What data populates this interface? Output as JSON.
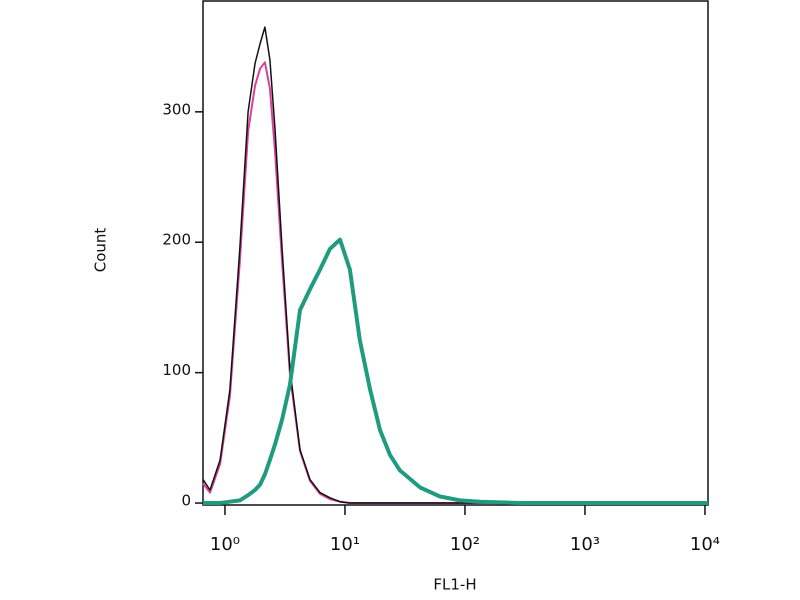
{
  "chart_data": {
    "type": "line",
    "xlabel": "FL1-H",
    "ylabel": "Count",
    "xscale": "log",
    "x": [
      0.656,
      0.75,
      0.91,
      1.1,
      1.33,
      1.56,
      1.78,
      1.96,
      2.15,
      2.37,
      2.61,
      2.99,
      3.48,
      4.22,
      5.11,
      6.19,
      7.5,
      9.09,
      11.0,
      13.3,
      16.2,
      19.6,
      23.7,
      28.7,
      42.2,
      61.9,
      90.9,
      133,
      287,
      1334,
      10600
    ],
    "series": [
      {
        "color": "#d8409c",
        "width": 2,
        "values": [
          15,
          8,
          30,
          82,
          185,
          285,
          320,
          333,
          338,
          318,
          270,
          185,
          98,
          40,
          17,
          7,
          3,
          1,
          0,
          0,
          0,
          0,
          0,
          0,
          0,
          0,
          0,
          0,
          0,
          0,
          0
        ]
      },
      {
        "color": "#111111",
        "width": 1.5,
        "values": [
          18,
          10,
          33,
          87,
          195,
          300,
          337,
          352,
          365,
          340,
          287,
          195,
          102,
          41,
          18,
          8,
          4,
          1,
          0,
          0,
          0,
          0,
          0,
          0,
          0,
          0,
          0,
          0,
          0,
          0,
          0
        ]
      },
      {
        "color": "#1f9c80",
        "width": 4,
        "values": [
          0,
          0,
          0,
          1,
          2,
          6,
          10,
          14,
          22,
          33,
          45,
          64,
          91,
          148,
          164,
          179,
          195,
          202,
          179,
          125,
          87,
          56,
          37,
          25,
          12,
          5,
          2,
          1,
          0,
          0,
          0
        ]
      }
    ],
    "xlim": [
      0.656,
      10600
    ],
    "ylim": [
      -1.5,
      385
    ],
    "xticks": [
      {
        "value": 1,
        "label": "10⁰"
      },
      {
        "value": 10,
        "label": "10¹"
      },
      {
        "value": 100,
        "label": "10²"
      },
      {
        "value": 1000,
        "label": "10³"
      },
      {
        "value": 10000,
        "label": "10⁴"
      }
    ],
    "yticks": [
      0,
      100,
      200,
      300
    ]
  }
}
